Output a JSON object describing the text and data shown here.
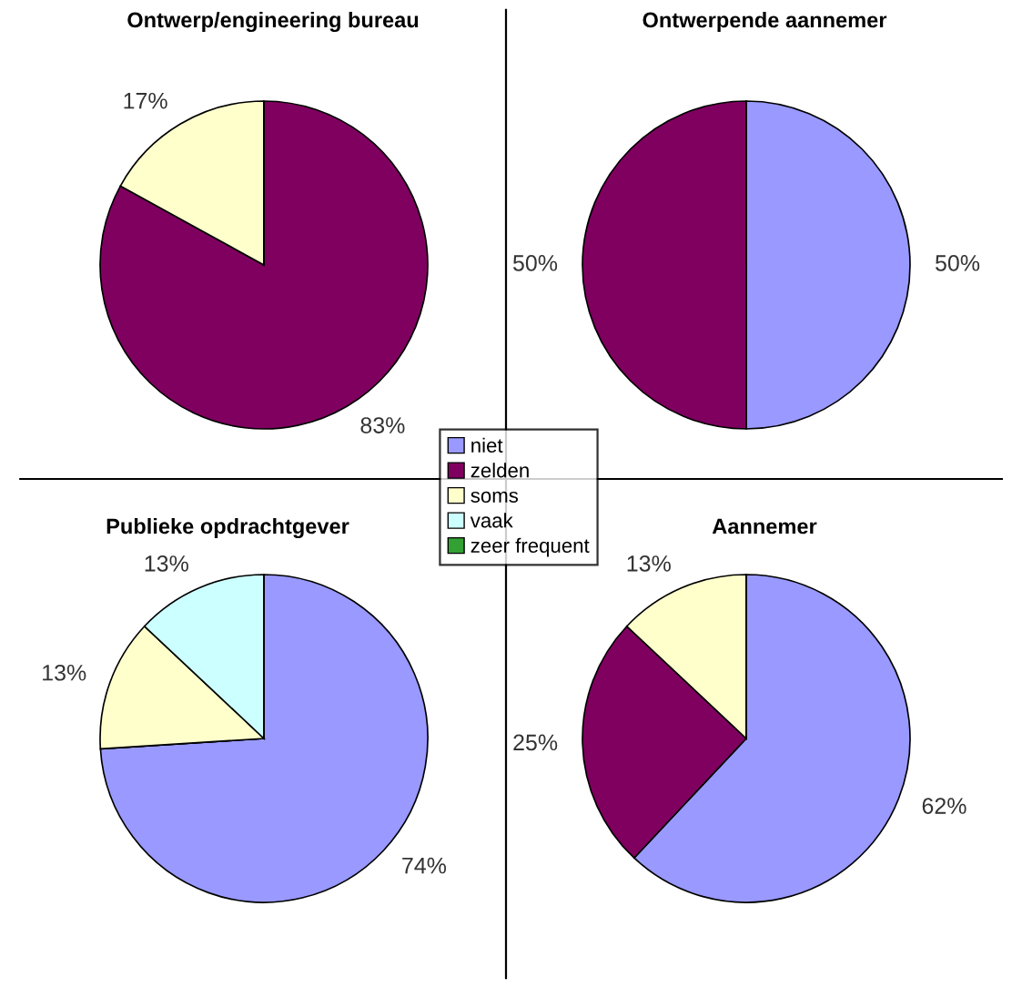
{
  "chart_data": [
    {
      "type": "pie",
      "title": "Ontwerp/engineering bureau",
      "categories": [
        "niet",
        "zelden",
        "soms",
        "vaak",
        "zeer frequent"
      ],
      "values": [
        0,
        83,
        17,
        0,
        0
      ],
      "value_labels": [
        null,
        "83%",
        "17%",
        null,
        null
      ],
      "colors": [
        "#9999ff",
        "#800060",
        "#ffffcc",
        "#ccffff",
        "#33a033"
      ],
      "legend": "right"
    },
    {
      "type": "pie",
      "title": "Ontwerpende aannemer",
      "categories": [
        null,
        null,
        null,
        null,
        null
      ],
      "values": [
        50,
        50,
        0,
        0,
        0
      ],
      "value_labels": [
        "50%",
        "50%",
        null,
        null,
        null
      ],
      "colors": [
        "#9999ff",
        "#800060",
        "#ffffcc",
        "#ccffff",
        "#33a033"
      ]
    },
    {
      "type": "pie",
      "title": "Publieke opdrachtgever",
      "categories": [
        null,
        null,
        null,
        null,
        null
      ],
      "values": [
        74,
        0,
        13,
        13,
        0
      ],
      "value_labels": [
        "74%",
        null,
        "13%",
        "13%",
        null
      ],
      "colors": [
        "#9999ff",
        "#800060",
        "#ffffcc",
        "#ccffff",
        "#33a033"
      ]
    },
    {
      "type": "pie",
      "title": "Aannemer",
      "categories": [
        null,
        null,
        null,
        null,
        null
      ],
      "values": [
        62,
        25,
        13,
        0,
        0
      ],
      "value_labels": [
        "62%",
        "25%",
        "13%",
        null,
        null
      ],
      "colors": [
        "#9999ff",
        "#800060",
        "#ffffcc",
        "#ccffff",
        "#33a033"
      ]
    }
  ]
}
